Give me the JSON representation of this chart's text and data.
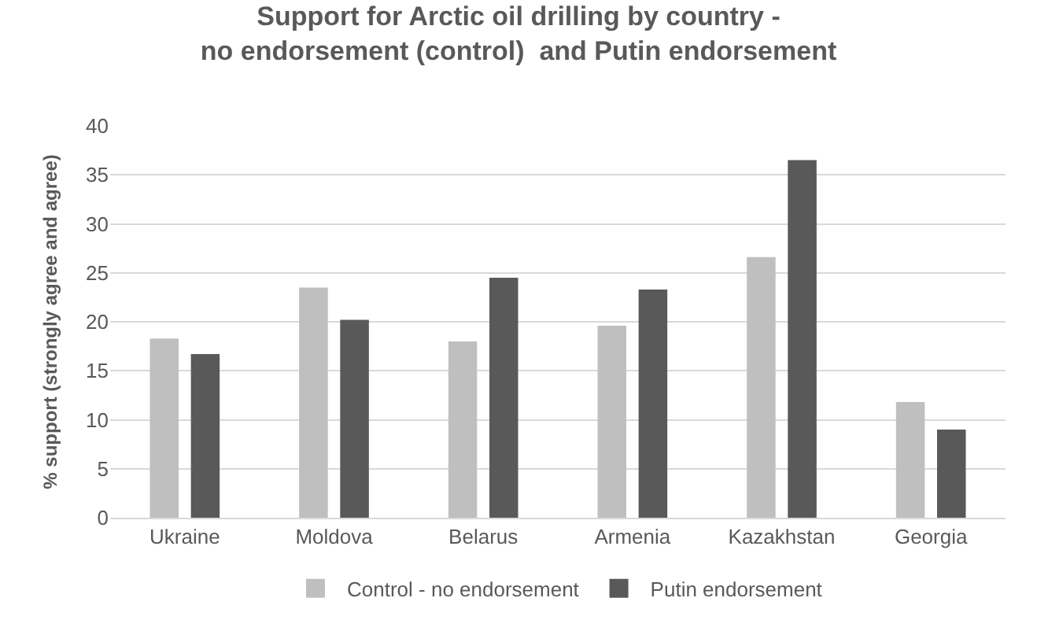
{
  "chart_data": {
    "type": "bar",
    "title": "Support for Arctic oil drilling by country -\nno endorsement (control)  and Putin endorsement",
    "ylabel": "% support (strongly agree and agree)",
    "categories": [
      "Ukraine",
      "Moldova",
      "Belarus",
      "Armenia",
      "Kazakhstan",
      "Georgia"
    ],
    "series": [
      {
        "name": "Control - no endorsement",
        "color": "#bfbfbf",
        "values": [
          18.3,
          23.5,
          18.0,
          19.6,
          26.6,
          11.8
        ]
      },
      {
        "name": "Putin endorsement",
        "color": "#595959",
        "values": [
          16.7,
          20.2,
          24.5,
          23.3,
          36.5,
          9.0
        ]
      }
    ],
    "ylim": [
      0,
      40
    ],
    "yticks": [
      0,
      5,
      10,
      15,
      20,
      25,
      30,
      35,
      40
    ],
    "grid": "y",
    "legend": "bottom"
  }
}
